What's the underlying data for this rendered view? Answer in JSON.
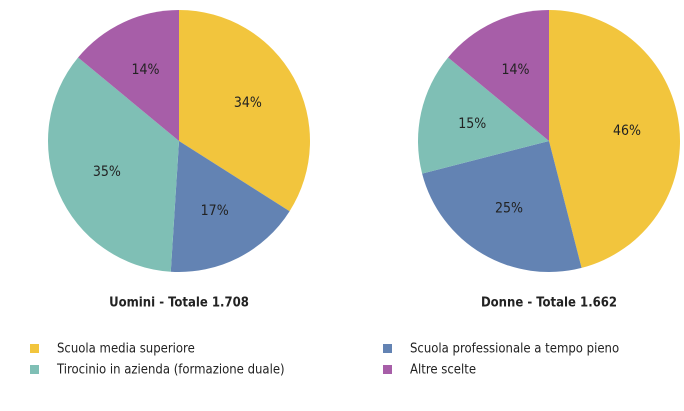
{
  "chart_data": {
    "type": "pie",
    "categories": [
      "Scuola media superiore",
      "Scuola professionale a tempo pieno",
      "Tirocinio in azienda (formazione duale)",
      "Altre scelte"
    ],
    "colors": [
      "#f2c53d",
      "#6383b3",
      "#7fbfb5",
      "#a75ea8"
    ],
    "pies": [
      {
        "title": "Uomini - Totale 1.708",
        "values": [
          34,
          17,
          35,
          14
        ],
        "value_labels": [
          "34%",
          "17%",
          "35%",
          "14%"
        ]
      },
      {
        "title": "Donne - Totale 1.662",
        "values": [
          46,
          25,
          15,
          14
        ],
        "value_labels": [
          "46%",
          "25%",
          "15%",
          "14%"
        ]
      }
    ]
  }
}
